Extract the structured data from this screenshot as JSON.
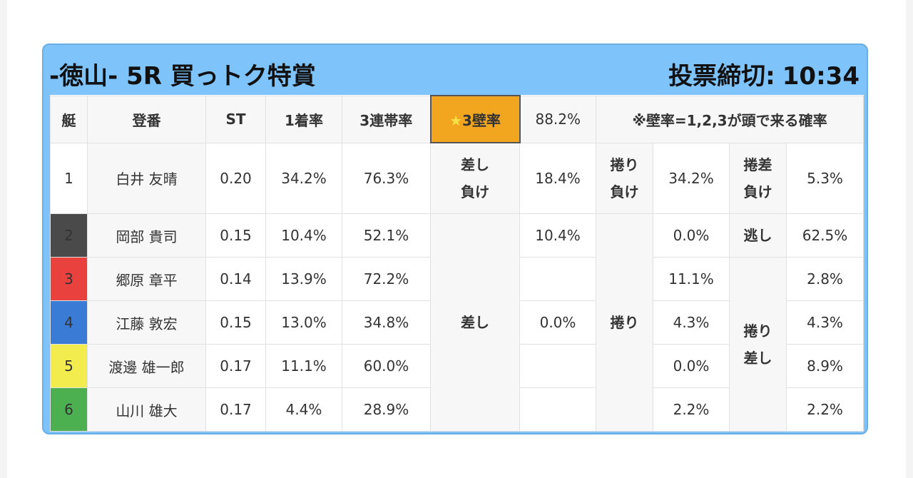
{
  "header": {
    "title": "-徳山- 5R 買っトク特賞",
    "deadline_label": "投票締切:",
    "deadline_time": "10:34"
  },
  "columns": {
    "boat": "艇",
    "name": "登番",
    "st": "ST",
    "first_rate": "1着率",
    "trio_rate": "3連帯率",
    "wall_label": "3壁率",
    "wall_star": "★",
    "wall_value": "88.2%",
    "note": "※壁率=1,2,3が頭で来る確率"
  },
  "racers": [
    {
      "boat": "1",
      "name": "白井 友晴",
      "st": "0.20",
      "first": "34.2%",
      "trio": "76.3%"
    },
    {
      "boat": "2",
      "name": "岡部 貴司",
      "st": "0.15",
      "first": "10.4%",
      "trio": "52.1%"
    },
    {
      "boat": "3",
      "name": "郷原 章平",
      "st": "0.14",
      "first": "13.9%",
      "trio": "72.2%"
    },
    {
      "boat": "4",
      "name": "江藤 敦宏",
      "st": "0.15",
      "first": "13.0%",
      "trio": "34.8%"
    },
    {
      "boat": "5",
      "name": "渡邊 雄一郎",
      "st": "0.17",
      "first": "11.1%",
      "trio": "60.0%"
    },
    {
      "boat": "6",
      "name": "山川 雄大",
      "st": "0.17",
      "first": "4.4%",
      "trio": "28.9%"
    }
  ],
  "outcomes": {
    "sashi_make_1": "差し",
    "sashi_make_2": "負け",
    "sashi_make_value": "18.4%",
    "makuri_make_1": "捲り",
    "makuri_make_2": "負け",
    "makuri_make_value": "34.2%",
    "makurisashi_make_1": "捲差",
    "makurisashi_make_2": "負け",
    "makurisashi_make_value": "5.3%",
    "sashi": "差し",
    "sashi_values": [
      "10.4%",
      "",
      "0.0%",
      "",
      ""
    ],
    "makuri": "捲り",
    "makuri_values": [
      "0.0%",
      "11.1%",
      "4.3%",
      "0.0%",
      "2.2%"
    ],
    "nige": "逃し",
    "nige_value": "62.5%",
    "makurisashi_1": "捲り",
    "makurisashi_2": "差し",
    "makurisashi_values": [
      "2.8%",
      "4.3%",
      "8.9%",
      "2.2%"
    ]
  }
}
